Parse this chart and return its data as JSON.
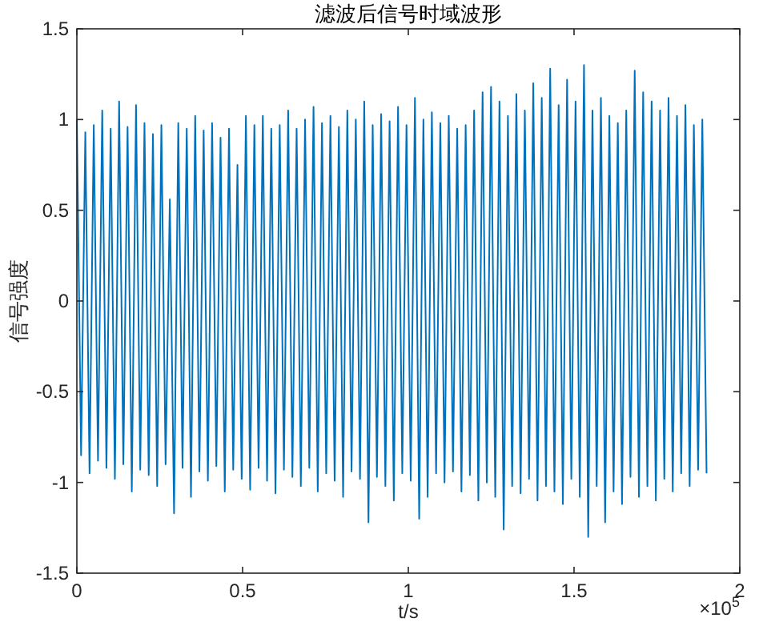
{
  "chart_data": {
    "type": "line",
    "title": "滤波后信号时域波形",
    "xlabel": "t/s",
    "ylabel": "信号强度",
    "color": "#0072bd",
    "xlim": [
      0,
      2
    ],
    "ylim": [
      -1.5,
      1.5
    ],
    "xticks": [
      0,
      0.5,
      1,
      1.5,
      2
    ],
    "yticks": [
      -1.5,
      -1,
      -0.5,
      0,
      0.5,
      1,
      1.5
    ],
    "annotations": [
      "×10$^{5}$"
    ],
    "x": [
      0,
      0.01275,
      0.0255,
      0.03825,
      0.051,
      0.06375,
      0.0765,
      0.08925,
      0.102,
      0.11475,
      0.1275,
      0.14025,
      0.153,
      0.16575,
      0.1785,
      0.19125,
      0.204,
      0.21675,
      0.2295,
      0.24225,
      0.255,
      0.26775,
      0.2805,
      0.29325,
      0.306,
      0.31875,
      0.3315,
      0.34425,
      0.357,
      0.36975,
      0.3825,
      0.39525,
      0.408,
      0.42075,
      0.4335,
      0.44625,
      0.459,
      0.47175,
      0.4845,
      0.49725,
      0.51,
      0.52275,
      0.5355,
      0.54825,
      0.561,
      0.57375,
      0.5865,
      0.59925,
      0.612,
      0.62475,
      0.6375,
      0.65025,
      0.663,
      0.67575,
      0.6885,
      0.70125,
      0.714,
      0.72675,
      0.7395,
      0.75225,
      0.765,
      0.77775,
      0.7905,
      0.80325,
      0.816,
      0.82875,
      0.8415,
      0.85425,
      0.867,
      0.87975,
      0.8925,
      0.90525,
      0.918,
      0.93075,
      0.9435,
      0.95625,
      0.969,
      0.98175,
      0.9945,
      1.00725,
      1.02,
      1.03275,
      1.0455,
      1.05825,
      1.071,
      1.08375,
      1.0965,
      1.10925,
      1.122,
      1.13475,
      1.1475,
      1.16025,
      1.173,
      1.18575,
      1.1985,
      1.21125,
      1.224,
      1.23675,
      1.2495,
      1.26225,
      1.275,
      1.28775,
      1.3005,
      1.31325,
      1.326,
      1.33875,
      1.3515,
      1.36425,
      1.377,
      1.38975,
      1.4025,
      1.41525,
      1.428,
      1.44075,
      1.4535,
      1.46625,
      1.479,
      1.49175,
      1.5045,
      1.51725,
      1.53,
      1.54275,
      1.5555,
      1.56825,
      1.581,
      1.59375,
      1.6065,
      1.61925,
      1.632,
      1.64475,
      1.6575,
      1.67025,
      1.683,
      1.69575,
      1.7085,
      1.72125,
      1.734,
      1.74675,
      1.7595,
      1.77225,
      1.785,
      1.79775,
      1.8105,
      1.82325,
      1.836,
      1.84875,
      1.8615,
      1.87425,
      1.887,
      1.89975
    ],
    "values": [
      1.0,
      -0.85,
      0.93,
      -0.95,
      0.97,
      -0.88,
      1.05,
      -0.92,
      0.95,
      -0.98,
      1.1,
      -0.9,
      0.96,
      -1.05,
      1.08,
      -0.93,
      0.98,
      -0.96,
      0.92,
      -1.02,
      0.97,
      -0.9,
      0.56,
      -1.17,
      0.98,
      -0.92,
      0.95,
      -1.08,
      1.02,
      -0.94,
      0.94,
      -0.99,
      0.98,
      -0.91,
      0.9,
      -1.05,
      0.95,
      -0.93,
      0.75,
      -0.98,
      1.02,
      -1.04,
      0.97,
      -0.92,
      1.02,
      -0.99,
      0.95,
      -1.06,
      0.97,
      -0.93,
      1.05,
      -0.97,
      0.95,
      -1.02,
      1.0,
      -0.92,
      1.07,
      -1.05,
      0.98,
      -0.95,
      1.02,
      -0.99,
      0.96,
      -1.08,
      1.05,
      -0.94,
      1.0,
      -0.98,
      1.1,
      -1.22,
      0.97,
      -0.97,
      1.03,
      -1.02,
      0.99,
      -1.1,
      1.07,
      -0.95,
      0.97,
      -0.99,
      1.12,
      -1.2,
      1.0,
      -1.08,
      1.04,
      -0.95,
      0.98,
      -1.0,
      1.02,
      -0.94,
      0.95,
      -1.05,
      0.97,
      -0.96,
      1.05,
      -1.1,
      1.15,
      -1.0,
      1.18,
      -1.08,
      1.1,
      -1.26,
      1.02,
      -1.02,
      1.14,
      -1.06,
      1.05,
      -0.98,
      1.2,
      -1.1,
      1.12,
      -1.02,
      1.28,
      -1.05,
      1.08,
      -1.12,
      1.22,
      -0.98,
      1.1,
      -1.08,
      1.3,
      -1.3,
      1.05,
      -1.02,
      1.12,
      -1.22,
      1.02,
      -1.05,
      0.98,
      -1.12,
      1.05,
      -0.97,
      1.27,
      -1.08,
      1.15,
      -1.02,
      1.1,
      -1.1,
      1.05,
      -0.98,
      1.12,
      -1.05,
      1.02,
      -0.95,
      1.08,
      -1.02,
      0.97,
      -0.93,
      1.0,
      -0.95
    ]
  }
}
